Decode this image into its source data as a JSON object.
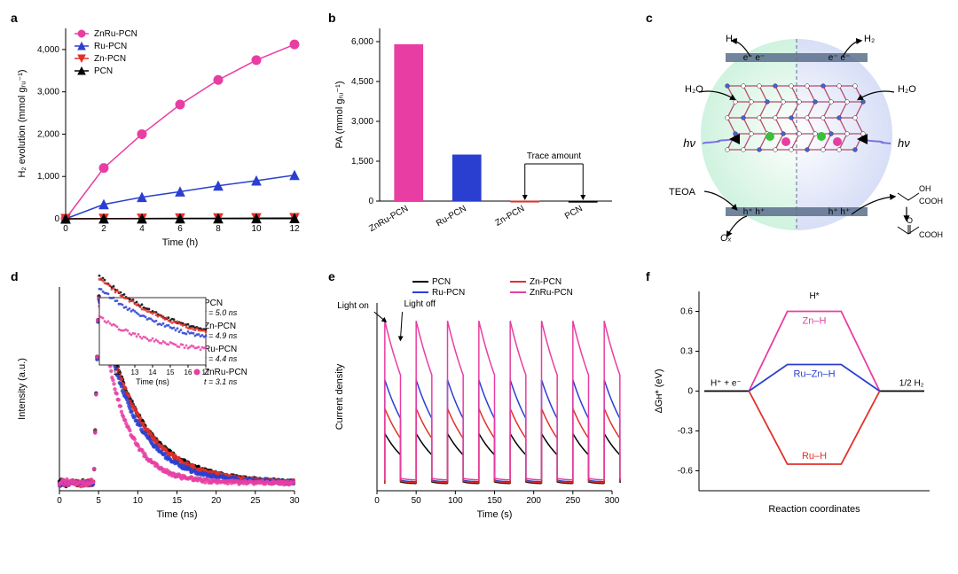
{
  "figure": {
    "background_color": "#ffffff",
    "font_family": "Arial",
    "label_fontsize": 14,
    "axis_fontsize": 11,
    "tick_fontsize": 10
  },
  "colors": {
    "ZnRu_PCN": "#e83ea3",
    "Ru_PCN": "#2a3fd0",
    "Zn_PCN": "#e2302a",
    "PCN": "#000000",
    "axis": "#000000",
    "grid": "#ffffff"
  },
  "panel_a": {
    "label": "a",
    "type": "line+marker",
    "xlabel": "Time (h)",
    "ylabel": "H₂ evolution (mmol gᵣᵤ⁻¹)",
    "xlim": [
      0,
      12
    ],
    "xtick_step": 2,
    "ylim": [
      0,
      4500
    ],
    "yticks": [
      0,
      1000,
      2000,
      3000,
      4000
    ],
    "series": [
      {
        "name": "ZnRu-PCN",
        "color": "#e83ea3",
        "marker": "circle",
        "x": [
          0,
          2,
          4,
          6,
          8,
          10,
          12
        ],
        "y": [
          0,
          1200,
          2000,
          2700,
          3280,
          3750,
          4120
        ]
      },
      {
        "name": "Ru-PCN",
        "color": "#2a3fd0",
        "marker": "triangle-up",
        "x": [
          0,
          2,
          4,
          6,
          8,
          10,
          12
        ],
        "y": [
          0,
          340,
          510,
          640,
          780,
          900,
          1030
        ]
      },
      {
        "name": "Zn-PCN",
        "color": "#e2302a",
        "marker": "triangle-down",
        "x": [
          0,
          2,
          4,
          6,
          8,
          10,
          12
        ],
        "y": [
          0,
          5,
          8,
          12,
          15,
          18,
          20
        ]
      },
      {
        "name": "PCN",
        "color": "#000000",
        "marker": "triangle-up",
        "x": [
          0,
          2,
          4,
          6,
          8,
          10,
          12
        ],
        "y": [
          0,
          2,
          3,
          5,
          6,
          8,
          10
        ]
      }
    ],
    "line_width": 1.5,
    "marker_size": 5
  },
  "panel_b": {
    "label": "b",
    "type": "bar",
    "xlabel": "",
    "ylabel": "PA (mmol gᵣᵤ⁻¹)",
    "ylim": [
      0,
      6500
    ],
    "yticks": [
      0,
      1500,
      3000,
      4500,
      6000
    ],
    "categories": [
      "ZnRu-PCN",
      "Ru-PCN",
      "Zn-PCN",
      "PCN"
    ],
    "values": [
      5900,
      1750,
      15,
      10
    ],
    "bar_colors": [
      "#e83ea3",
      "#2a3fd0",
      "#e2302a",
      "#000000"
    ],
    "annotation": {
      "text": "Trace amount",
      "targets": [
        "Zn-PCN",
        "PCN"
      ]
    },
    "bar_width": 0.5
  },
  "panel_c": {
    "label": "c",
    "type": "schematic",
    "description": "circular photocatalysis diagram, green left half / blue right half, lattice scaffold in center",
    "left_bg": "#c6f0d8",
    "right_bg": "#cfd8f5",
    "lattice_stroke": "#b94a6e",
    "atom_colors": {
      "N": "#4a5fd0",
      "C": "#ffffff",
      "Zn": "#3bbf3b",
      "Ru": "#e83ea3"
    },
    "band_color": "#5a6e8c",
    "labels": {
      "top_left_arrow": "H₂",
      "top_left_e": "e⁻  e⁻",
      "top_right_arrow": "H₂",
      "top_right_e": "e⁻  e⁻",
      "left_in": "H₂O",
      "right_in": "H₂O",
      "hv_left": "hν",
      "hv_right": "hν",
      "h_left": "h⁺  h⁺",
      "h_right": "h⁺  h⁺",
      "teoa": "TEOA",
      "ox": "Oₓ",
      "lactic_top": "OH",
      "lactic_cooh": "COOH",
      "pyruvic_o": "O",
      "pyruvic_cooh": "COOH"
    }
  },
  "panel_d": {
    "label": "d",
    "type": "decay-scatter",
    "xlabel": "Time (ns)",
    "ylabel": "Intensity (a.u.)",
    "xlim": [
      0,
      30
    ],
    "xtick_step": 5,
    "ylim": [
      0,
      1.05
    ],
    "peak_x": 5.0,
    "series": [
      {
        "name": "PCN",
        "t": "t = 5.0 ns",
        "color": "#000000",
        "tau": 5.0,
        "offset": 0.0
      },
      {
        "name": "Zn-PCN",
        "t": "t = 4.9 ns",
        "color": "#e2302a",
        "tau": 4.9,
        "offset": 0.0
      },
      {
        "name": "Ru-PCN",
        "t": "t = 4.4 ns",
        "color": "#2a3fd0",
        "tau": 4.4,
        "offset": 0.0
      },
      {
        "name": "ZnRu-PCN",
        "t": "t = 3.1 ns",
        "color": "#e83ea3",
        "tau": 3.1,
        "offset": 0.0
      }
    ],
    "marker_size": 2.2,
    "inset": {
      "xlim": [
        11,
        17
      ],
      "xticks": [
        12,
        13,
        14,
        15,
        16,
        17
      ],
      "xlabel": "Time (ns)"
    }
  },
  "panel_e": {
    "label": "e",
    "type": "chopped-photocurrent",
    "xlabel": "Time (s)",
    "ylabel": "Current density",
    "xlim": [
      0,
      300
    ],
    "xtick_step": 50,
    "ylim": [
      0,
      1.05
    ],
    "period": 40,
    "duty": 0.5,
    "n_cycles": 7,
    "t0": 10,
    "light_on_label": "Light on",
    "light_off_label": "Light off",
    "series": [
      {
        "name": "PCN",
        "color": "#000000",
        "amp": 0.32,
        "base": 0.04,
        "decay": 12
      },
      {
        "name": "Ru-PCN",
        "color": "#2a3fd0",
        "amp": 0.62,
        "base": 0.05,
        "decay": 14
      },
      {
        "name": "Zn-PCN",
        "color": "#e2302a",
        "amp": 0.46,
        "base": 0.045,
        "decay": 13
      },
      {
        "name": "ZnRu-PCN",
        "color": "#e83ea3",
        "amp": 0.95,
        "base": 0.06,
        "decay": 16
      }
    ],
    "line_width": 1.5,
    "legend_order": [
      "PCN",
      "Zn-PCN",
      "Ru-PCN",
      "ZnRu-PCN"
    ]
  },
  "panel_f": {
    "label": "f",
    "type": "free-energy-diagram",
    "xlabel": "Reaction coordinates",
    "ylabel": "ΔGʜ* (eV)",
    "ylim": [
      -0.75,
      0.75
    ],
    "yticks": [
      -0.6,
      -0.3,
      0,
      0.3,
      0.6
    ],
    "left_state": "H⁺ + e⁻",
    "right_state": "1/2 H₂",
    "top_state": "H*",
    "paths": [
      {
        "name": "Zn–H",
        "color": "#e83ea3",
        "dg": 0.6
      },
      {
        "name": "Ru–Zn–H",
        "color": "#2a3fd0",
        "dg": 0.2
      },
      {
        "name": "Ru–H",
        "color": "#e2302a",
        "dg": -0.55
      }
    ],
    "baseline_color": "#000000",
    "line_width": 1.8
  }
}
